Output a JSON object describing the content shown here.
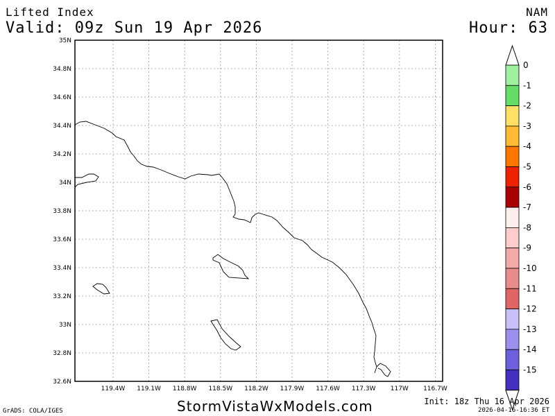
{
  "header": {
    "field_title": "Lifted Index",
    "valid_time": "Valid: 09z Sun 19 Apr 2026",
    "model": "NAM",
    "forecast_hour": "Hour: 63"
  },
  "footer": {
    "grads_credit": "GrADS: COLA/IGES",
    "website": "StormVistaWxModels.com",
    "init_time": "Init: 18z Thu 16 Apr 2026",
    "generated_stamp": "2026-04-16-16:36 ET"
  },
  "map": {
    "lat_labels": [
      "35N",
      "34.8N",
      "34.6N",
      "34.4N",
      "34.2N",
      "34N",
      "33.8N",
      "33.6N",
      "33.4N",
      "33.2N",
      "33N",
      "32.8N",
      "32.6N"
    ],
    "lon_labels": [
      "119.4W",
      "119.1W",
      "118.8W",
      "118.5W",
      "118.2W",
      "117.9W",
      "117.6W",
      "117.3W",
      "117W",
      "116.7W"
    ],
    "lat_range": [
      32.6,
      35.0
    ],
    "lon_range": [
      -119.6,
      -116.7
    ],
    "grid": "dotted",
    "frame_color": "#000000"
  },
  "legend": {
    "labels": [
      "0",
      "-1",
      "-2",
      "-3",
      "-4",
      "-5",
      "-6",
      "-7",
      "-8",
      "-9",
      "-10",
      "-11",
      "-12",
      "-13",
      "-14",
      "-15"
    ],
    "colors": [
      "#a0f0a0",
      "#66dd66",
      "#ffe066",
      "#ffbb33",
      "#ff7700",
      "#ee2200",
      "#aa0000",
      "#ffeeee",
      "#ffcccc",
      "#f4a8a8",
      "#e88c8c",
      "#e06666",
      "#c8c0f8",
      "#9c90ee",
      "#6e60dd",
      "#4430c0"
    ]
  }
}
